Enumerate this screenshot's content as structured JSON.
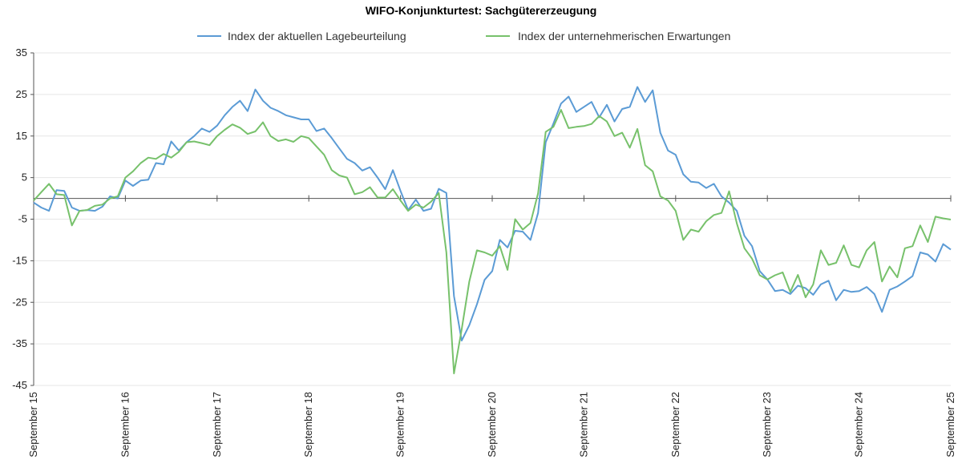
{
  "chart_data": {
    "type": "line",
    "title": "WIFO-Konjunkturtest: Sachgütererzeugung",
    "xlabel": "",
    "ylabel": "",
    "ylim": [
      -45,
      35
    ],
    "yticks": [
      35,
      25,
      15,
      5,
      -5,
      -15,
      -25,
      -35,
      -45
    ],
    "grid": "horizontal",
    "legend_position": "top",
    "x_tick_labels": [
      "September 15",
      "September 16",
      "September 17",
      "September 18",
      "September 19",
      "September 20",
      "September 21",
      "September 22",
      "September 23",
      "September 24",
      "September 25"
    ],
    "x_start": "2015-09",
    "series": [
      {
        "name": "Index der aktuellen Lagebeurteilung",
        "color": "#5b9bd5",
        "values": [
          -1,
          -2.2,
          -3,
          2,
          1.8,
          -2.2,
          -3,
          -2.8,
          -3,
          -2,
          0.5,
          0,
          4.3,
          3,
          4.3,
          4.5,
          8.5,
          8.2,
          13.7,
          11.5,
          13.5,
          15,
          16.8,
          16,
          17.5,
          20,
          22,
          23.5,
          21,
          26.2,
          23.5,
          21.8,
          21,
          20,
          19.5,
          19,
          19,
          16.2,
          16.8,
          14.5,
          12,
          9.5,
          8.5,
          6.7,
          7.5,
          5,
          2.2,
          6.8,
          1.8,
          -2.8,
          -0.3,
          -3,
          -2.5,
          2.3,
          1.3,
          -23.5,
          -34.2,
          -30.5,
          -25.5,
          -19.6,
          -17.5,
          -10,
          -11.8,
          -7.8,
          -8,
          -10,
          -3.5,
          13.5,
          18,
          22.8,
          24.5,
          20.8,
          22,
          23.2,
          19.5,
          22.5,
          18.5,
          21.5,
          22,
          26.8,
          23.2,
          26,
          15.8,
          11.5,
          10.5,
          5.8,
          4,
          3.8,
          2.5,
          3.5,
          0.5,
          -1,
          -3,
          -9,
          -11.5,
          -17.5,
          -19.5,
          -22.3,
          -22,
          -23,
          -21,
          -21.6,
          -23.2,
          -20.7,
          -19.8,
          -24.5,
          -22,
          -22.5,
          -22.3,
          -21.3,
          -23,
          -27.3,
          -22,
          -21.2,
          -20,
          -18.7,
          -13,
          -13.5,
          -15.2,
          -11,
          -12.3
        ]
      },
      {
        "name": "Index der unternehmerischen Erwartungen",
        "color": "#77c16b",
        "values": [
          -0.5,
          1.5,
          3.5,
          1,
          0.8,
          -6.5,
          -3,
          -2.8,
          -1.8,
          -1.5,
          0,
          0.5,
          5,
          6.5,
          8.5,
          9.8,
          9.5,
          10.7,
          9.8,
          11.2,
          13.5,
          13.7,
          13.3,
          12.8,
          15,
          16.5,
          17.8,
          17,
          15.5,
          16.1,
          18.3,
          15,
          13.8,
          14.2,
          13.6,
          15,
          14.5,
          12.5,
          10.5,
          6.8,
          5.5,
          5,
          1,
          1.5,
          2.7,
          0.2,
          0.2,
          2.2,
          -0.5,
          -3,
          -1.5,
          -2.2,
          -0.8,
          1.3,
          -13,
          -42.1,
          -31.5,
          -20,
          -12.5,
          -13,
          -13.8,
          -11.5,
          -17.2,
          -5,
          -7.5,
          -5.9,
          1.2,
          16,
          17.2,
          21.3,
          16.9,
          17.2,
          17.4,
          17.9,
          19.8,
          18.5,
          15,
          15.8,
          12.2,
          16.7,
          8,
          6.5,
          0.5,
          -0.5,
          -3,
          -10,
          -7.5,
          -8,
          -5.5,
          -4,
          -3.5,
          1.7,
          -6,
          -12,
          -14.5,
          -18.5,
          -19.5,
          -18.5,
          -17.8,
          -22.5,
          -18.4,
          -23.8,
          -20.7,
          -12.5,
          -16,
          -15.5,
          -11.3,
          -16,
          -16.6,
          -12.5,
          -10.5,
          -20,
          -16.4,
          -19,
          -12,
          -11.5,
          -6.5,
          -10.5,
          -4.4,
          -4.8,
          -5.1
        ]
      }
    ]
  }
}
